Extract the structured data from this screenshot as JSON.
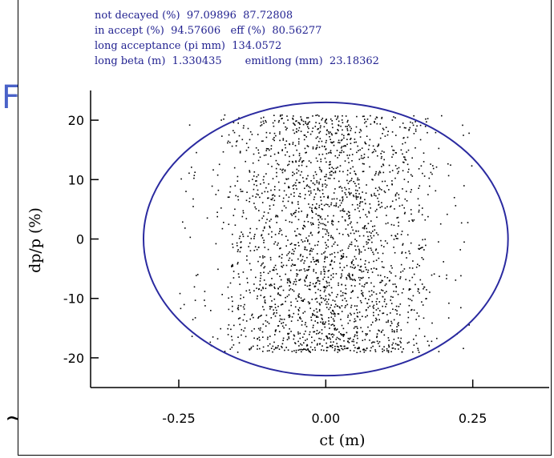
{
  "stats": {
    "line1_label": "not decayed (%)",
    "line1_v1": "97.09896",
    "line1_v2": "87.72808",
    "line2_label": "in accept (%)",
    "line2_v1": "94.57606",
    "line2_label2": "eff (%)",
    "line2_v2": "80.56277",
    "line3_label": "long acceptance (pi mm)",
    "line3_v1": "134.0572",
    "line4_label": "long beta (m)",
    "line4_v1": "1.330435",
    "line4_label2": "emitlong (mm)",
    "line4_v2": "23.18362"
  },
  "colors": {
    "ellipse": "#2a2aa0",
    "points": "#000000",
    "text_blue": "#1f1f8f",
    "bg_glyph": "#4a62c8"
  },
  "chart_data": {
    "type": "scatter",
    "xlabel": "ct (m)",
    "ylabel": "dp/p (%)",
    "xlim": [
      -0.4,
      0.38
    ],
    "ylim": [
      -25,
      25
    ],
    "xticks": [
      -0.25,
      0.0,
      0.25
    ],
    "xtick_labels": [
      "-0.25",
      "0.00",
      "0.25"
    ],
    "yticks": [
      -20,
      -10,
      0,
      10,
      20
    ],
    "ytick_labels": [
      "-20",
      "-10",
      "0",
      "10",
      "20"
    ],
    "grid": false,
    "acceptance_ellipse": {
      "center": [
        0.0,
        0.0
      ],
      "semi_axis_x": 0.31,
      "semi_axis_y": 23
    },
    "point_cloud": {
      "x_range": [
        -0.25,
        0.25
      ],
      "y_range": [
        -19,
        21
      ],
      "approx_count": 2400
    }
  }
}
